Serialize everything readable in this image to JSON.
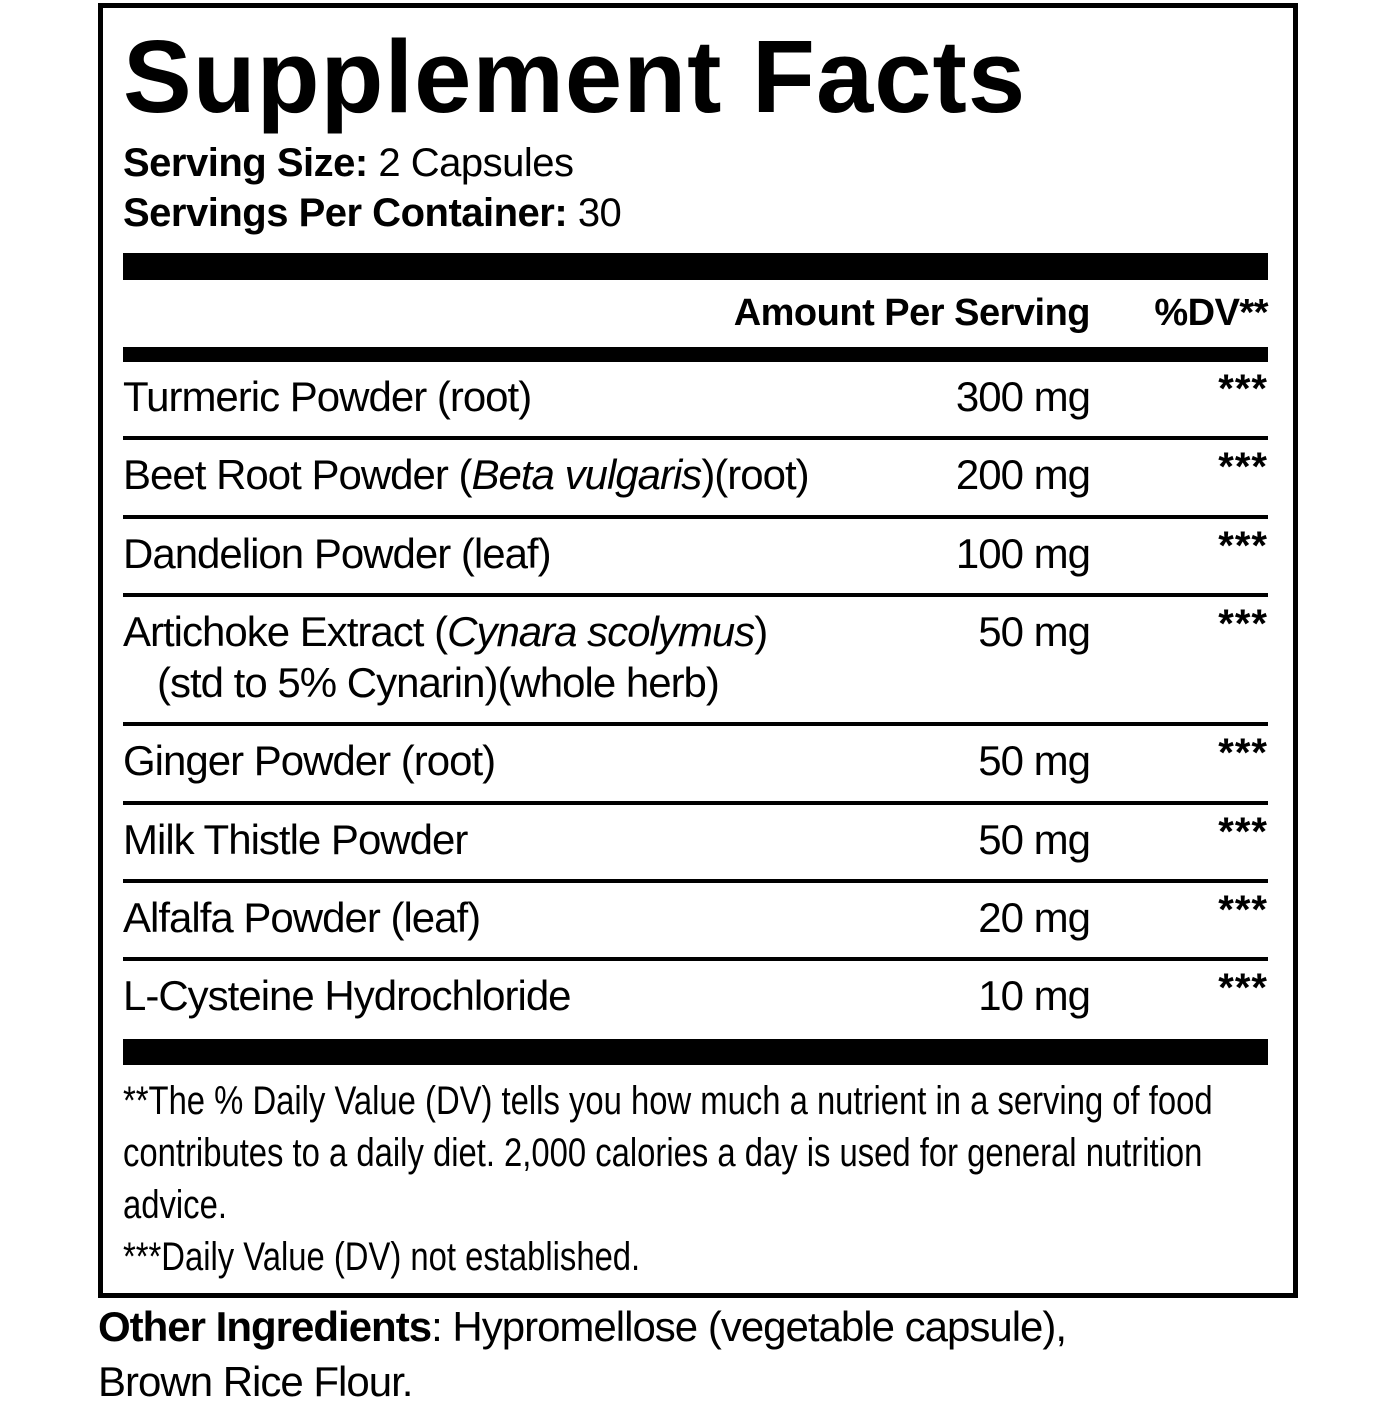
{
  "supplement_facts": {
    "title": "Supplement Facts",
    "serving": {
      "size_label": "Serving Size:",
      "size_value": "2 Capsules",
      "per_container_label": "Servings Per Container:",
      "per_container_value": "30"
    },
    "columns": {
      "amount": "Amount Per Serving",
      "dv": "%DV**"
    },
    "rows": [
      {
        "pre": "Turmeric Powder (root)",
        "italic": "",
        "post": "",
        "line2": "",
        "amount": "300 mg",
        "dv": "***"
      },
      {
        "pre": "Beet Root Powder (",
        "italic": "Beta vulgaris",
        "post": ")(root)",
        "line2": "",
        "amount": "200 mg",
        "dv": "***"
      },
      {
        "pre": "Dandelion Powder (leaf)",
        "italic": "",
        "post": "",
        "line2": "",
        "amount": "100 mg",
        "dv": "***"
      },
      {
        "pre": "Artichoke Extract (",
        "italic": "Cynara scolymus",
        "post": ")",
        "line2": "(std to 5% Cynarin)(whole herb)",
        "amount": "50 mg",
        "dv": "***"
      },
      {
        "pre": "Ginger Powder (root)",
        "italic": "",
        "post": "",
        "line2": "",
        "amount": "50 mg",
        "dv": "***"
      },
      {
        "pre": "Milk Thistle Powder",
        "italic": "",
        "post": "",
        "line2": "",
        "amount": "50 mg",
        "dv": "***"
      },
      {
        "pre": "Alfalfa Powder (leaf)",
        "italic": "",
        "post": "",
        "line2": "",
        "amount": "20 mg",
        "dv": "***"
      },
      {
        "pre": "L-Cysteine Hydrochloride",
        "italic": "",
        "post": "",
        "line2": "",
        "amount": "10 mg",
        "dv": "***"
      }
    ],
    "footnotes": {
      "dv_note": "**The % Daily Value (DV) tells you how much a nutrient in a serving of food contributes to a daily diet. 2,000 calories a day is used for general nutrition advice.",
      "not_established": "***Daily Value (DV) not established."
    },
    "other_ingredients": {
      "label": "Other Ingredients",
      "rest": ": Hypromellose (vegetable capsule),",
      "line2": "Brown Rice Flour."
    },
    "colors": {
      "ink": "#000000",
      "background": "#ffffff"
    }
  }
}
